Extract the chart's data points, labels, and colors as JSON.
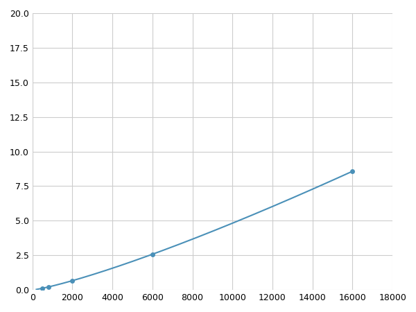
{
  "x_points": [
    200,
    500,
    800,
    2000,
    6000,
    16000
  ],
  "y_points": [
    0.05,
    0.12,
    0.18,
    0.6,
    2.5,
    10.0
  ],
  "line_color": "#4a90b8",
  "marker_color": "#4a90b8",
  "marker_size": 5,
  "xlim": [
    0,
    18000
  ],
  "ylim": [
    0,
    20.0
  ],
  "xticks": [
    0,
    2000,
    4000,
    6000,
    8000,
    10000,
    12000,
    14000,
    16000,
    18000
  ],
  "yticks": [
    0.0,
    2.5,
    5.0,
    7.5,
    10.0,
    12.5,
    15.0,
    17.5,
    20.0
  ],
  "grid_color": "#cccccc",
  "background_color": "#ffffff",
  "figsize": [
    6.0,
    4.5
  ],
  "dpi": 100,
  "power_fit": true
}
